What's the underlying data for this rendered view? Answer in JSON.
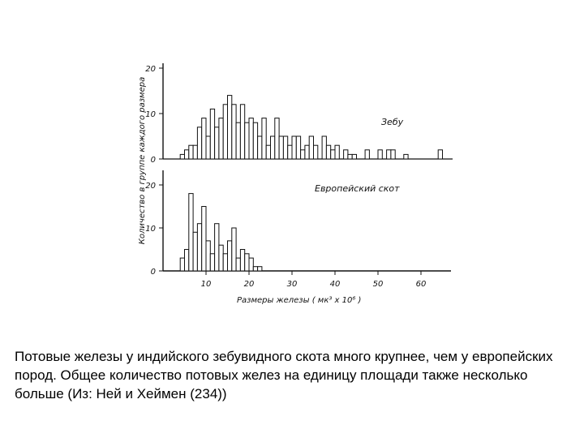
{
  "chart_data": [
    {
      "type": "bar",
      "panel_label": "Зебу",
      "ylim": [
        0,
        20
      ],
      "yticks": [
        0,
        10,
        20
      ],
      "bins": [
        {
          "x0": 4,
          "x1": 5,
          "value": 1
        },
        {
          "x0": 5,
          "x1": 6,
          "value": 2
        },
        {
          "x0": 6,
          "x1": 7,
          "value": 3
        },
        {
          "x0": 7,
          "x1": 8,
          "value": 3
        },
        {
          "x0": 8,
          "x1": 9,
          "value": 7
        },
        {
          "x0": 9,
          "x1": 10,
          "value": 9
        },
        {
          "x0": 10,
          "x1": 11,
          "value": 5
        },
        {
          "x0": 11,
          "x1": 12,
          "value": 11
        },
        {
          "x0": 12,
          "x1": 13,
          "value": 7
        },
        {
          "x0": 13,
          "x1": 14,
          "value": 9
        },
        {
          "x0": 14,
          "x1": 15,
          "value": 12
        },
        {
          "x0": 15,
          "x1": 16,
          "value": 14
        },
        {
          "x0": 16,
          "x1": 17,
          "value": 12
        },
        {
          "x0": 17,
          "x1": 18,
          "value": 8
        },
        {
          "x0": 18,
          "x1": 19,
          "value": 12
        },
        {
          "x0": 19,
          "x1": 20,
          "value": 8
        },
        {
          "x0": 20,
          "x1": 21,
          "value": 9
        },
        {
          "x0": 21,
          "x1": 22,
          "value": 8
        },
        {
          "x0": 22,
          "x1": 23,
          "value": 5
        },
        {
          "x0": 23,
          "x1": 24,
          "value": 9
        },
        {
          "x0": 24,
          "x1": 25,
          "value": 3
        },
        {
          "x0": 25,
          "x1": 26,
          "value": 5
        },
        {
          "x0": 26,
          "x1": 27,
          "value": 9
        },
        {
          "x0": 27,
          "x1": 28,
          "value": 5
        },
        {
          "x0": 28,
          "x1": 29,
          "value": 5
        },
        {
          "x0": 29,
          "x1": 30,
          "value": 3
        },
        {
          "x0": 30,
          "x1": 31,
          "value": 5
        },
        {
          "x0": 31,
          "x1": 32,
          "value": 5
        },
        {
          "x0": 32,
          "x1": 33,
          "value": 2
        },
        {
          "x0": 33,
          "x1": 34,
          "value": 3
        },
        {
          "x0": 34,
          "x1": 35,
          "value": 5
        },
        {
          "x0": 35,
          "x1": 36,
          "value": 3
        },
        {
          "x0": 37,
          "x1": 38,
          "value": 5
        },
        {
          "x0": 38,
          "x1": 39,
          "value": 3
        },
        {
          "x0": 39,
          "x1": 40,
          "value": 2
        },
        {
          "x0": 40,
          "x1": 41,
          "value": 3
        },
        {
          "x0": 42,
          "x1": 43,
          "value": 2
        },
        {
          "x0": 43,
          "x1": 44,
          "value": 1
        },
        {
          "x0": 44,
          "x1": 45,
          "value": 1
        },
        {
          "x0": 47,
          "x1": 48,
          "value": 2
        },
        {
          "x0": 50,
          "x1": 51,
          "value": 2
        },
        {
          "x0": 52,
          "x1": 53,
          "value": 2
        },
        {
          "x0": 53,
          "x1": 54,
          "value": 2
        },
        {
          "x0": 56,
          "x1": 57,
          "value": 1
        },
        {
          "x0": 64,
          "x1": 65,
          "value": 2
        }
      ]
    },
    {
      "type": "bar",
      "panel_label": "Европейский скот",
      "ylim": [
        0,
        20
      ],
      "yticks": [
        0,
        10,
        20
      ],
      "xlim": [
        0,
        67
      ],
      "xticks": [
        10,
        20,
        30,
        40,
        50,
        60
      ],
      "xlabel": "Размеры железы ( мк³ x 10⁶ )",
      "bins": [
        {
          "x0": 4,
          "x1": 5,
          "value": 3
        },
        {
          "x0": 5,
          "x1": 6,
          "value": 5
        },
        {
          "x0": 6,
          "x1": 7,
          "value": 18
        },
        {
          "x0": 7,
          "x1": 8,
          "value": 9
        },
        {
          "x0": 8,
          "x1": 9,
          "value": 11
        },
        {
          "x0": 9,
          "x1": 10,
          "value": 15
        },
        {
          "x0": 10,
          "x1": 11,
          "value": 7
        },
        {
          "x0": 11,
          "x1": 12,
          "value": 4
        },
        {
          "x0": 12,
          "x1": 13,
          "value": 11
        },
        {
          "x0": 13,
          "x1": 14,
          "value": 6
        },
        {
          "x0": 14,
          "x1": 15,
          "value": 4
        },
        {
          "x0": 15,
          "x1": 16,
          "value": 7
        },
        {
          "x0": 16,
          "x1": 17,
          "value": 10
        },
        {
          "x0": 17,
          "x1": 18,
          "value": 3
        },
        {
          "x0": 18,
          "x1": 19,
          "value": 5
        },
        {
          "x0": 19,
          "x1": 20,
          "value": 4
        },
        {
          "x0": 20,
          "x1": 21,
          "value": 3
        },
        {
          "x0": 21,
          "x1": 22,
          "value": 1
        },
        {
          "x0": 22,
          "x1": 23,
          "value": 1
        }
      ]
    }
  ],
  "ylabel": "Количество в группе каждого размера",
  "caption": "Потовые железы у индийского зебувидного скота много крупнее, чем у европейских пород. Общее количество потовых желез на единицу площади  также несколько больше (Из: Ней и Хеймен (234))"
}
